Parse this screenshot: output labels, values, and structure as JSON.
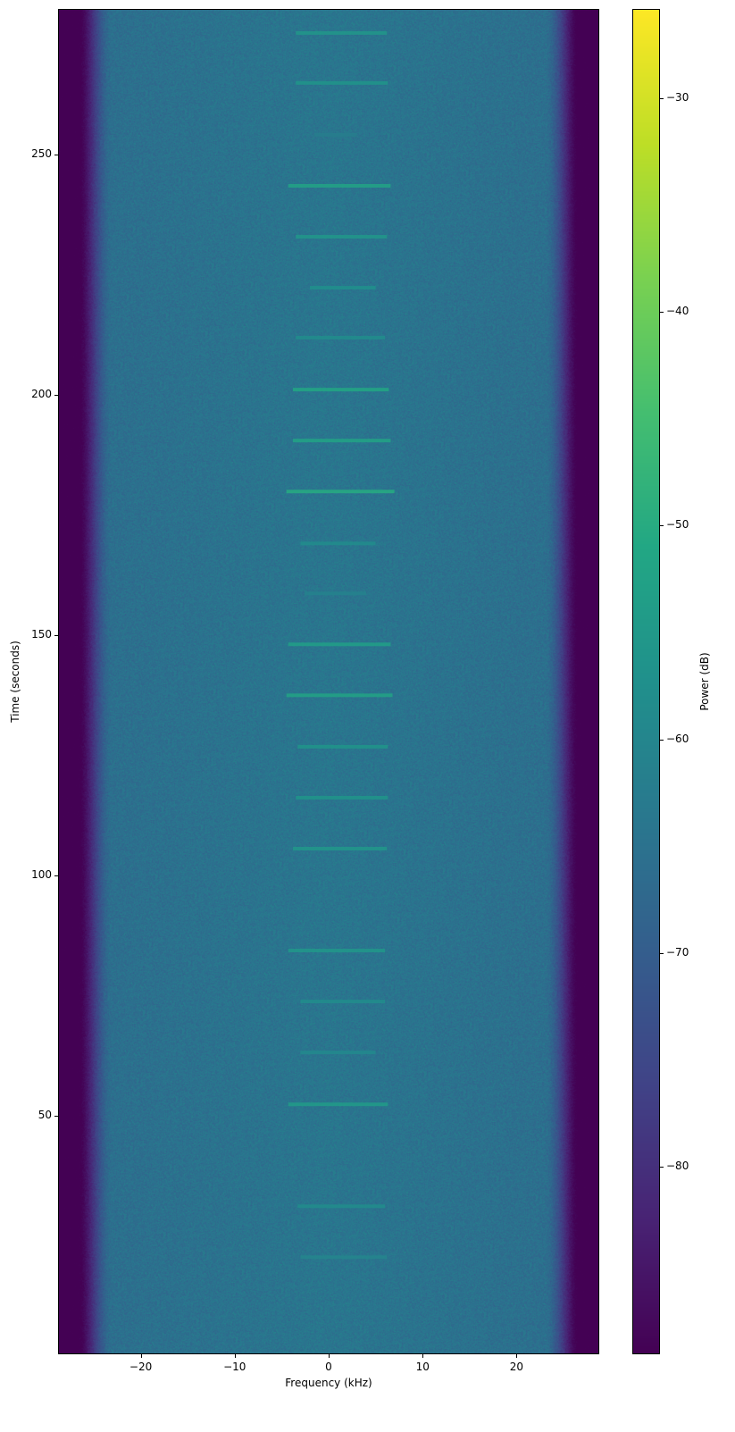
{
  "chart_data": {
    "type": "heatmap",
    "title": "",
    "xlabel": "Frequency (kHz)",
    "ylabel": "Time (seconds)",
    "xlim": [
      -28.8,
      28.8
    ],
    "ylim": [
      0.4,
      280.3
    ],
    "xticks": [
      -20,
      -10,
      0,
      10,
      20
    ],
    "xtick_labels": [
      "−20",
      "−10",
      "0",
      "10",
      "20"
    ],
    "yticks": [
      50,
      100,
      150,
      200,
      250
    ],
    "ytick_labels": [
      "50",
      "100",
      "150",
      "200",
      "250"
    ],
    "colormap": "viridis",
    "colorbar": {
      "label": "Power (dB)",
      "range": [
        -88.8,
        -25.8
      ],
      "ticks": [
        -30,
        -40,
        -50,
        -60,
        -70,
        -80
      ],
      "tick_labels": [
        "−30",
        "−40",
        "−50",
        "−60",
        "−70",
        "−80"
      ]
    },
    "background": {
      "noise_floor_db": -64,
      "passband_edge_khz": 23,
      "outside_band_db": -88
    },
    "bursts": [
      {
        "time": 275.3,
        "f_start": -3.5,
        "f_end": 6.2,
        "power_db": -55
      },
      {
        "time": 264.9,
        "f_start": -3.5,
        "f_end": 6.3,
        "power_db": -56
      },
      {
        "time": 254.1,
        "f_start": -1.5,
        "f_end": 3.0,
        "power_db": -62
      },
      {
        "time": 243.5,
        "f_start": -4.3,
        "f_end": 6.6,
        "power_db": -52
      },
      {
        "time": 232.9,
        "f_start": -3.5,
        "f_end": 6.2,
        "power_db": -55
      },
      {
        "time": 222.3,
        "f_start": -2.0,
        "f_end": 5.0,
        "power_db": -57
      },
      {
        "time": 211.9,
        "f_start": -3.5,
        "f_end": 6.0,
        "power_db": -58
      },
      {
        "time": 201.1,
        "f_start": -3.8,
        "f_end": 6.4,
        "power_db": -51
      },
      {
        "time": 190.5,
        "f_start": -3.8,
        "f_end": 6.6,
        "power_db": -52
      },
      {
        "time": 179.9,
        "f_start": -4.5,
        "f_end": 7.0,
        "power_db": -50
      },
      {
        "time": 169.1,
        "f_start": -3.0,
        "f_end": 5.0,
        "power_db": -58
      },
      {
        "time": 158.7,
        "f_start": -2.5,
        "f_end": 4.0,
        "power_db": -61
      },
      {
        "time": 148.1,
        "f_start": -4.3,
        "f_end": 6.6,
        "power_db": -53
      },
      {
        "time": 137.5,
        "f_start": -4.5,
        "f_end": 6.8,
        "power_db": -52
      },
      {
        "time": 126.8,
        "f_start": -3.3,
        "f_end": 6.3,
        "power_db": -56
      },
      {
        "time": 116.2,
        "f_start": -3.5,
        "f_end": 6.3,
        "power_db": -56
      },
      {
        "time": 105.6,
        "f_start": -3.8,
        "f_end": 6.2,
        "power_db": -55
      },
      {
        "time": 84.4,
        "f_start": -4.3,
        "f_end": 6.0,
        "power_db": -55
      },
      {
        "time": 73.8,
        "f_start": -3.0,
        "f_end": 6.0,
        "power_db": -58
      },
      {
        "time": 63.2,
        "f_start": -3.0,
        "f_end": 5.0,
        "power_db": -59
      },
      {
        "time": 52.4,
        "f_start": -4.3,
        "f_end": 6.3,
        "power_db": -54
      },
      {
        "time": 31.2,
        "f_start": -3.3,
        "f_end": 6.0,
        "power_db": -58
      },
      {
        "time": 20.6,
        "f_start": -3.0,
        "f_end": 6.2,
        "power_db": -60
      }
    ]
  }
}
